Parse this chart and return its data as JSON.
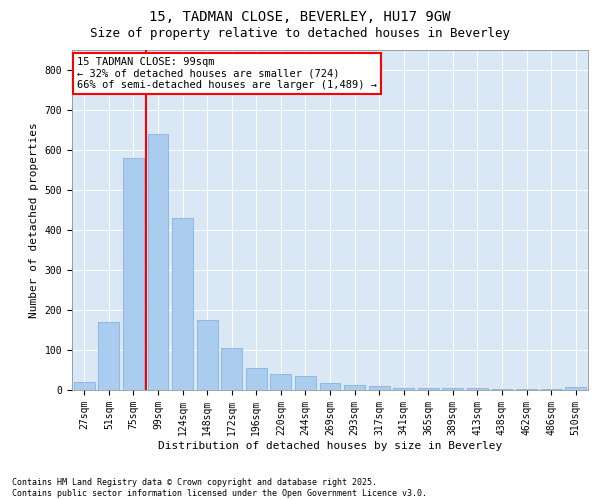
{
  "title1": "15, TADMAN CLOSE, BEVERLEY, HU17 9GW",
  "title2": "Size of property relative to detached houses in Beverley",
  "xlabel": "Distribution of detached houses by size in Beverley",
  "ylabel": "Number of detached properties",
  "categories": [
    "27sqm",
    "51sqm",
    "75sqm",
    "99sqm",
    "124sqm",
    "148sqm",
    "172sqm",
    "196sqm",
    "220sqm",
    "244sqm",
    "269sqm",
    "293sqm",
    "317sqm",
    "341sqm",
    "365sqm",
    "389sqm",
    "413sqm",
    "438sqm",
    "462sqm",
    "486sqm",
    "510sqm"
  ],
  "values": [
    20,
    170,
    580,
    640,
    430,
    175,
    105,
    55,
    40,
    35,
    18,
    12,
    10,
    5,
    5,
    5,
    4,
    3,
    2,
    2,
    8
  ],
  "bar_color": "#aaccee",
  "bar_edge_color": "#7aaadd",
  "vline_color": "red",
  "vline_xindex": 3,
  "ylim": [
    0,
    850
  ],
  "yticks": [
    0,
    100,
    200,
    300,
    400,
    500,
    600,
    700,
    800
  ],
  "background_color": "#dae8f5",
  "annotation_text": "15 TADMAN CLOSE: 99sqm\n← 32% of detached houses are smaller (724)\n66% of semi-detached houses are larger (1,489) →",
  "footer_text": "Contains HM Land Registry data © Crown copyright and database right 2025.\nContains public sector information licensed under the Open Government Licence v3.0.",
  "title_fontsize": 10,
  "subtitle_fontsize": 9,
  "axis_label_fontsize": 8,
  "tick_fontsize": 7,
  "annotation_fontsize": 7.5,
  "footer_fontsize": 6
}
